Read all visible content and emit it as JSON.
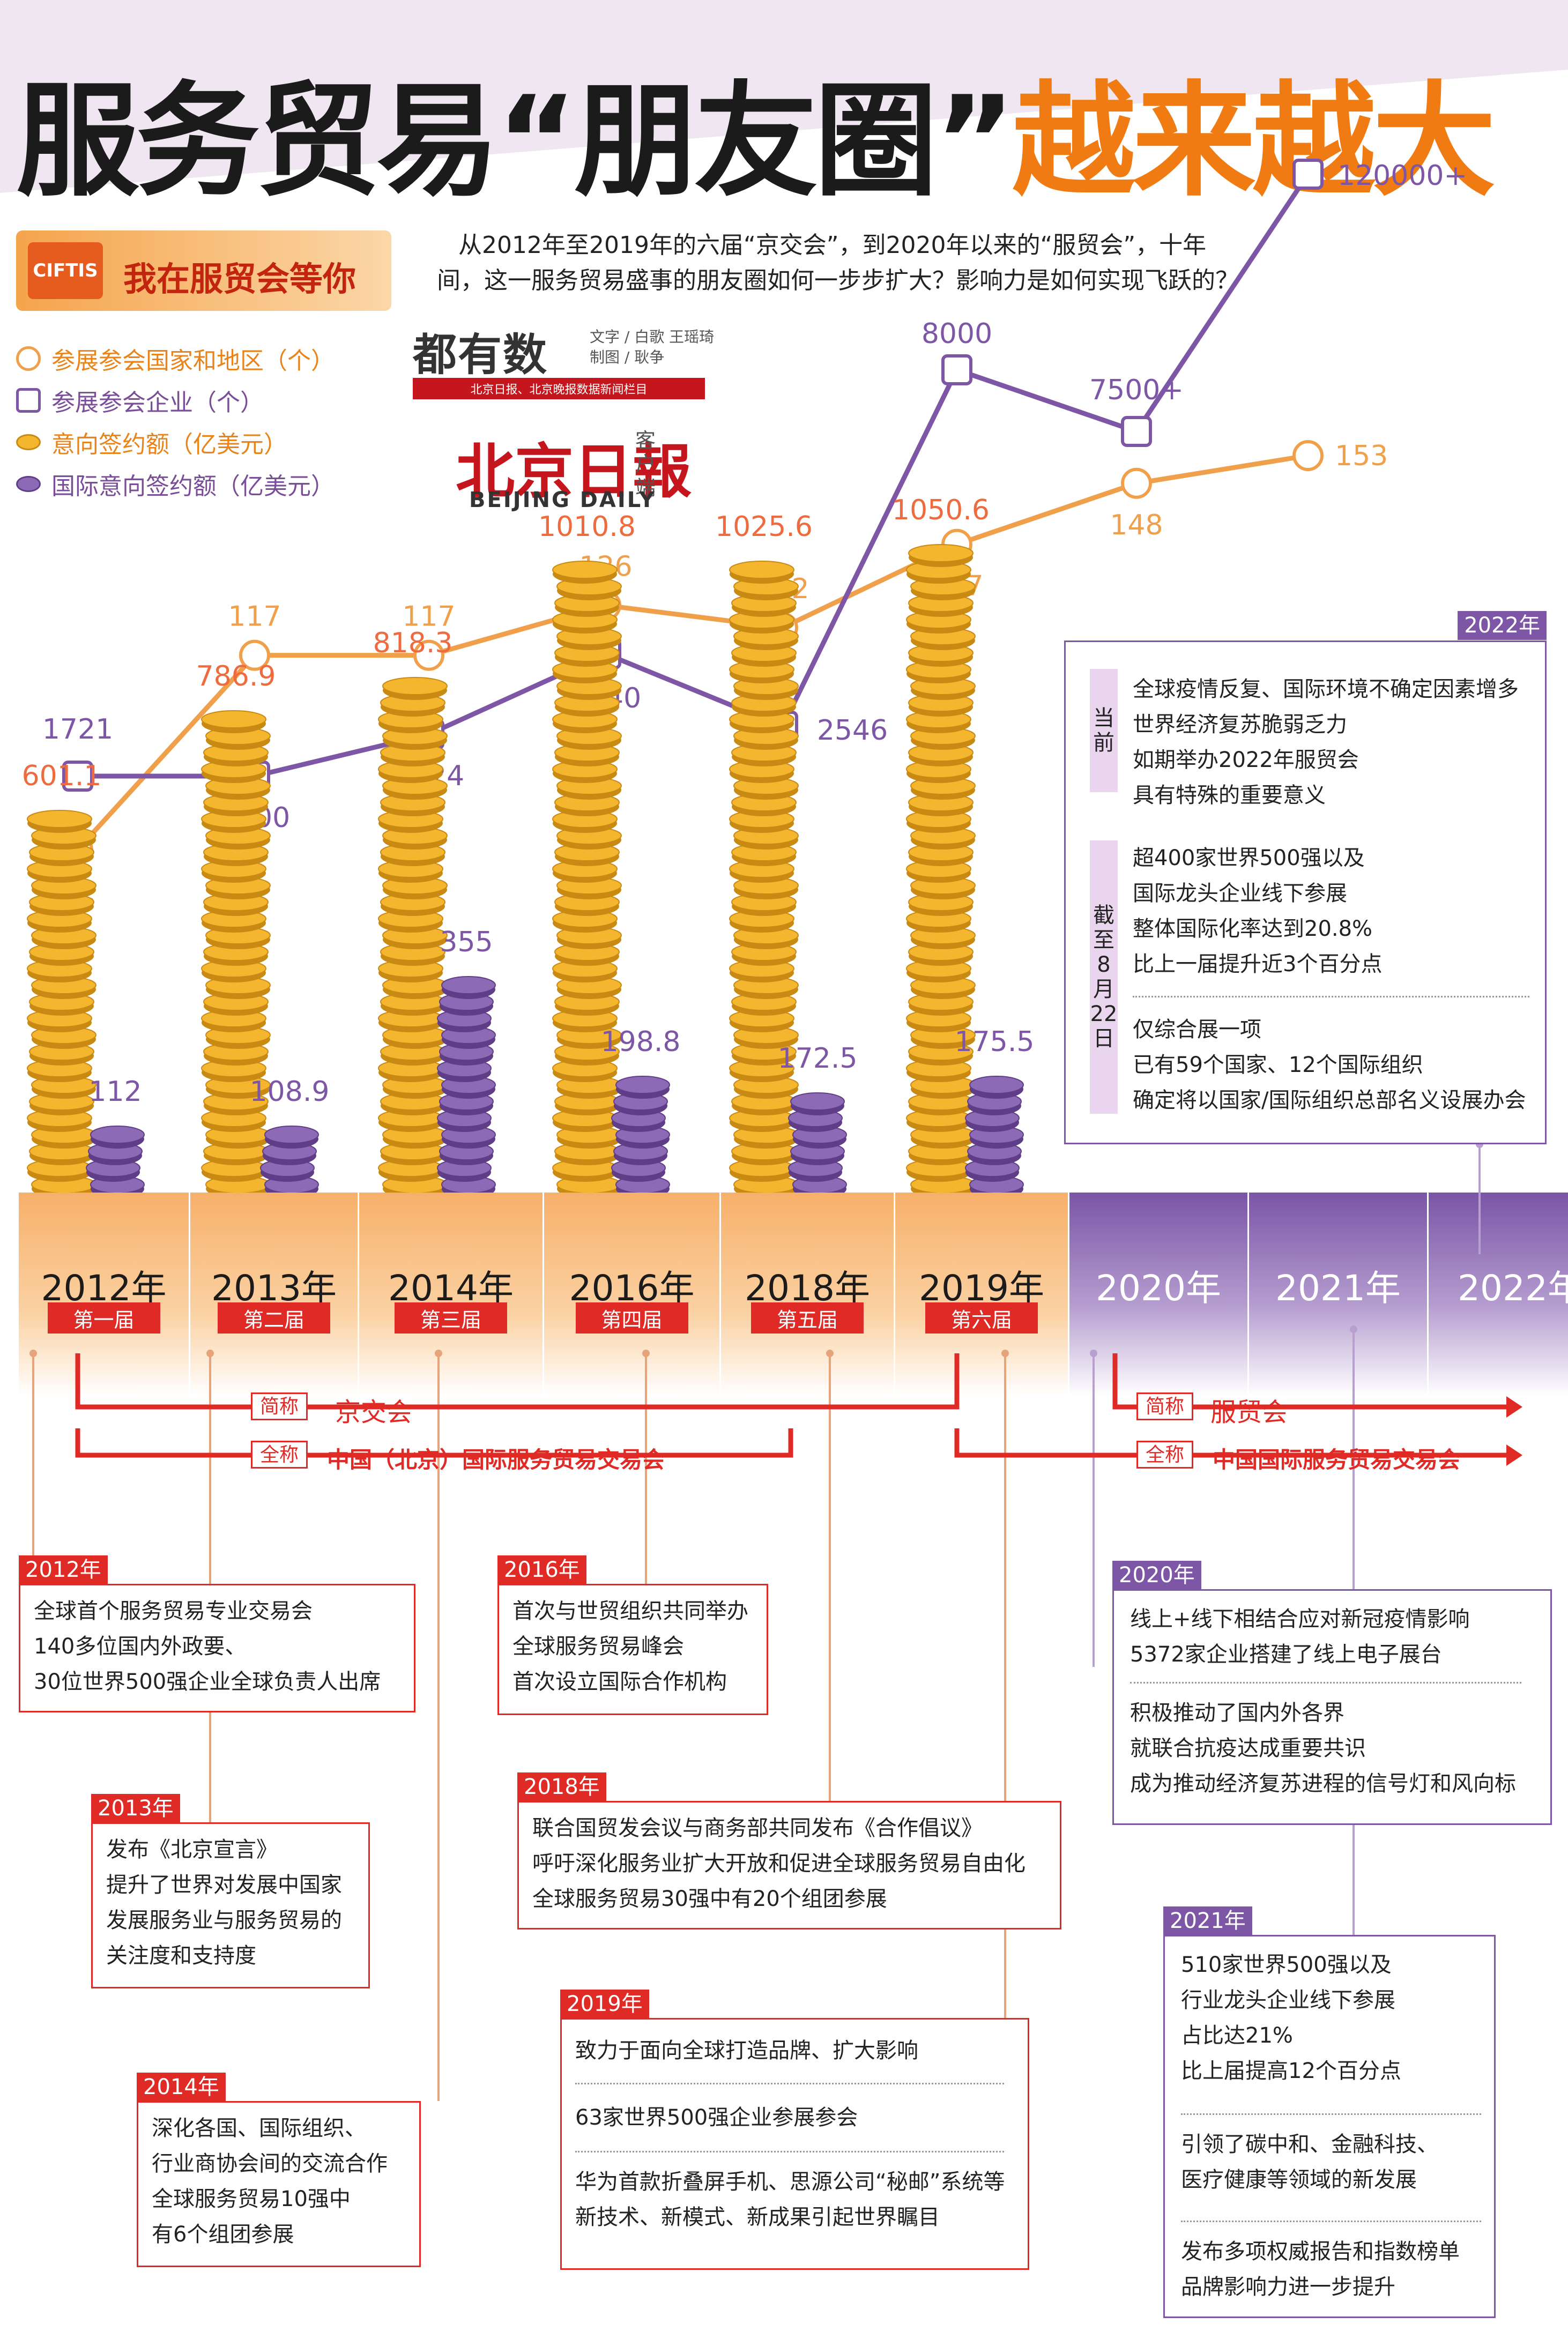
{
  "header": {
    "title_main": "服务贸易“朋友圈”",
    "title_accent": "越来越大",
    "banner_logo": "CIFTIS",
    "banner_text": "我在服贸会等你",
    "intro": "从2012年至2019年的六届“京交会”，到2020年以来的“服贸会”，十年间，这一服务贸易盛事的朋友圈如何一步步扩大？影响力是如何实现飞跃的？",
    "brand": "都有数",
    "credit_line1": "文字 / 白歌  王瑶琦",
    "credit_line2": "制图 / 耿争",
    "brand_bar": "北京日报、北京晚报数据新闻栏目",
    "paper_cn": "北京日報",
    "paper_side": "客户端",
    "paper_en": "BEIJING DAILY"
  },
  "legend": {
    "countries": "参展参会国家和地区（个）",
    "companies": "参展参会企业（个）",
    "deals": "意向签约额（亿美元）",
    "intl_deals": "国际意向签约额（亿美元）"
  },
  "colors": {
    "orange": "#f0a04b",
    "purple": "#7d56a6",
    "red": "#e02a26",
    "strip_orange": "#f7b577",
    "strip_purple": "#8d6ab5",
    "gold": "#f4b52f"
  },
  "chart_data": [
    {
      "type": "line",
      "x": [
        "2012年",
        "2013年",
        "2014年",
        "2016年",
        "2018年",
        "2019年",
        "2020年",
        "2021年",
        "2022年"
      ],
      "series": [
        {
          "name": "参展参会国家和地区（个）",
          "values": [
            82,
            117,
            117,
            126,
            122,
            137,
            148,
            153,
            null
          ],
          "labels": [
            "82",
            "117",
            "117",
            "126",
            "122",
            "137",
            "148",
            "153",
            ""
          ]
        },
        {
          "name": "参展参会企业（个）",
          "values": [
            1721,
            1900,
            2524,
            3740,
            2546,
            8000,
            7500,
            120000,
            null
          ],
          "labels": [
            "1721",
            "1900",
            "2524",
            "3740",
            "2546",
            "8000",
            "7500+",
            "120000+",
            ""
          ]
        }
      ]
    },
    {
      "type": "bar",
      "categories": [
        "2012年",
        "2013年",
        "2014年",
        "2016年",
        "2018年",
        "2019年"
      ],
      "series": [
        {
          "name": "意向签约额（亿美元）",
          "values": [
            601.1,
            786.9,
            818.3,
            1010.8,
            1025.6,
            1050.6
          ],
          "labels": [
            "601.1",
            "786.9",
            "818.3",
            "1010.8",
            "1025.6",
            "1050.6"
          ]
        },
        {
          "name": "国际意向签约额（亿美元）",
          "values": [
            112,
            108.9,
            355,
            198.8,
            172.5,
            175.5
          ],
          "labels": [
            "112",
            "108.9",
            "355",
            "198.8",
            "172.5",
            "175.5"
          ]
        }
      ]
    }
  ],
  "years": [
    {
      "label": "2012年",
      "edition": "第一届"
    },
    {
      "label": "2013年",
      "edition": "第二届"
    },
    {
      "label": "2014年",
      "edition": "第三届"
    },
    {
      "label": "2016年",
      "edition": "第四届"
    },
    {
      "label": "2018年",
      "edition": "第五届"
    },
    {
      "label": "2019年",
      "edition": "第六届"
    },
    {
      "label": "2020年",
      "edition": ""
    },
    {
      "label": "2021年",
      "edition": ""
    },
    {
      "label": "2022年",
      "edition": ""
    }
  ],
  "names": {
    "short_tag": "简称",
    "full_tag": "全称",
    "jjh_short": "京交会",
    "jjh_full": "中国（北京）国际服务贸易交易会",
    "fmh_short": "服贸会",
    "fmh_full": "中国国际服务贸易交易会"
  },
  "boxes": {
    "b2022": {
      "tag": "2022年",
      "side1": "当前",
      "side2": "截至8月22日",
      "lines": [
        "全球疫情反复、国际环境不确定因素增多",
        "世界经济复苏脆弱乏力",
        "如期举办2022年服贸会",
        "具有特殊的重要意义",
        "超400家世界500强以及",
        "国际龙头企业线下参展",
        "整体国际化率达到20.8%",
        "比上一届提升近3个百分点",
        "仅综合展一项",
        "已有59个国家、12个国际组织",
        "确定将以国家/国际组织总部名义设展办会"
      ]
    },
    "b2012": {
      "tag": "2012年",
      "lines": [
        "全球首个服务贸易专业交易会",
        "140多位国内外政要、",
        "30位世界500强企业全球负责人出席"
      ]
    },
    "b2013": {
      "tag": "2013年",
      "lines": [
        "发布《北京宣言》",
        "提升了世界对发展中国家",
        "发展服务业与服务贸易的",
        "关注度和支持度"
      ]
    },
    "b2014": {
      "tag": "2014年",
      "lines": [
        "深化各国、国际组织、",
        "行业商协会间的交流合作",
        "全球服务贸易10强中",
        "有6个组团参展"
      ]
    },
    "b2016": {
      "tag": "2016年",
      "lines": [
        "首次与世贸组织共同举办",
        "全球服务贸易峰会",
        "首次设立国际合作机构"
      ]
    },
    "b2018": {
      "tag": "2018年",
      "lines": [
        "联合国贸发会议与商务部共同发布《合作倡议》",
        "呼吁深化服务业扩大开放和促进全球服务贸易自由化",
        "全球服务贸易30强中有20个组团参展"
      ]
    },
    "b2019": {
      "tag": "2019年",
      "lines": [
        "致力于面向全球打造品牌、扩大影响",
        "63家世界500强企业参展参会",
        "华为首款折叠屏手机、思源公司“秘邮”系统等",
        "新技术、新模式、新成果引起世界瞩目"
      ]
    },
    "b2020": {
      "tag": "2020年",
      "lines": [
        "线上+线下相结合应对新冠疫情影响",
        "5372家企业搭建了线上电子展台",
        "积极推动了国内外各界",
        "就联合抗疫达成重要共识",
        "成为推动经济复苏进程的信号灯和风向标"
      ]
    },
    "b2021": {
      "tag": "2021年",
      "lines": [
        "510家世界500强以及",
        "行业龙头企业线下参展",
        "占比达21%",
        "比上届提高12个百分点",
        "引领了碳中和、金融科技、",
        "医疗健康等领域的新发展",
        "发布多项权威报告和指数榜单",
        "品牌影响力进一步提升"
      ]
    }
  }
}
